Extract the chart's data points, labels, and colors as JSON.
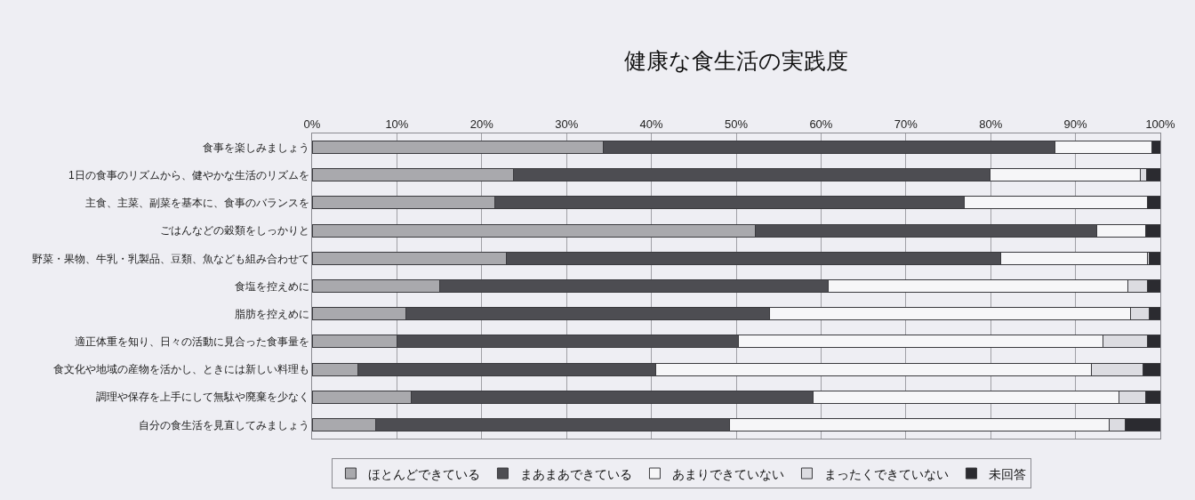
{
  "chart_data": {
    "type": "bar",
    "orientation": "horizontal",
    "stacked": true,
    "title": "健康な食生活の実践度",
    "categories": [
      "食事を楽しみましょう",
      "1日の食事のリズムから、健やかな生活のリズムを",
      "主食、主菜、副菜を基本に、食事のバランスを",
      "ごはんなどの穀類をしっかりと",
      "野菜・果物、牛乳・乳製品、豆類、魚なども組み合わせて",
      "食塩を控えめに",
      "脂肪を控えめに",
      "適正体重を知り、日々の活動に見合った食事量を",
      "食文化や地域の産物を活かし、ときには新しい料理も",
      "調理や保存を上手にして無駄や廃棄を少なく",
      "自分の食生活を見直してみましょう"
    ],
    "series": [
      {
        "name": "ほとんどできている",
        "color": "#a9a9ad",
        "values": [
          34.3,
          23.7,
          21.5,
          52.3,
          22.9,
          15.0,
          11.1,
          10.0,
          5.4,
          11.7,
          7.5
        ]
      },
      {
        "name": "まあまあできている",
        "color": "#4d4d52",
        "values": [
          53.3,
          56.2,
          55.4,
          40.2,
          58.3,
          45.8,
          42.8,
          40.3,
          35.1,
          47.4,
          41.7
        ]
      },
      {
        "name": "あまりできていない",
        "color": "#f6f6f8",
        "values": [
          11.4,
          17.7,
          21.6,
          5.8,
          17.3,
          35.4,
          42.6,
          42.9,
          51.4,
          36.0,
          44.8
        ]
      },
      {
        "name": "まったくできていない",
        "color": "#dcdce1",
        "values": [
          0,
          0.8,
          0,
          0,
          0.2,
          2.3,
          2.2,
          5.3,
          6.1,
          3.2,
          1.9
        ]
      },
      {
        "name": "未回答",
        "color": "#2b2b30",
        "values": [
          1.0,
          1.6,
          1.5,
          1.7,
          1.3,
          1.5,
          1.3,
          1.5,
          2.0,
          1.7,
          4.1
        ]
      }
    ],
    "xlim": [
      0,
      100
    ],
    "xticks": [
      {
        "value": 0,
        "label": "0%"
      },
      {
        "value": 10,
        "label": "10%"
      },
      {
        "value": 20,
        "label": "20%"
      },
      {
        "value": 30,
        "label": "30%"
      },
      {
        "value": 40,
        "label": "40%"
      },
      {
        "value": 50,
        "label": "50%"
      },
      {
        "value": 60,
        "label": "60%"
      },
      {
        "value": 70,
        "label": "70%"
      },
      {
        "value": 80,
        "label": "80%"
      },
      {
        "value": 90,
        "label": "90%"
      },
      {
        "value": 100,
        "label": "100%"
      }
    ],
    "grid": "x",
    "legend": "bottom"
  }
}
